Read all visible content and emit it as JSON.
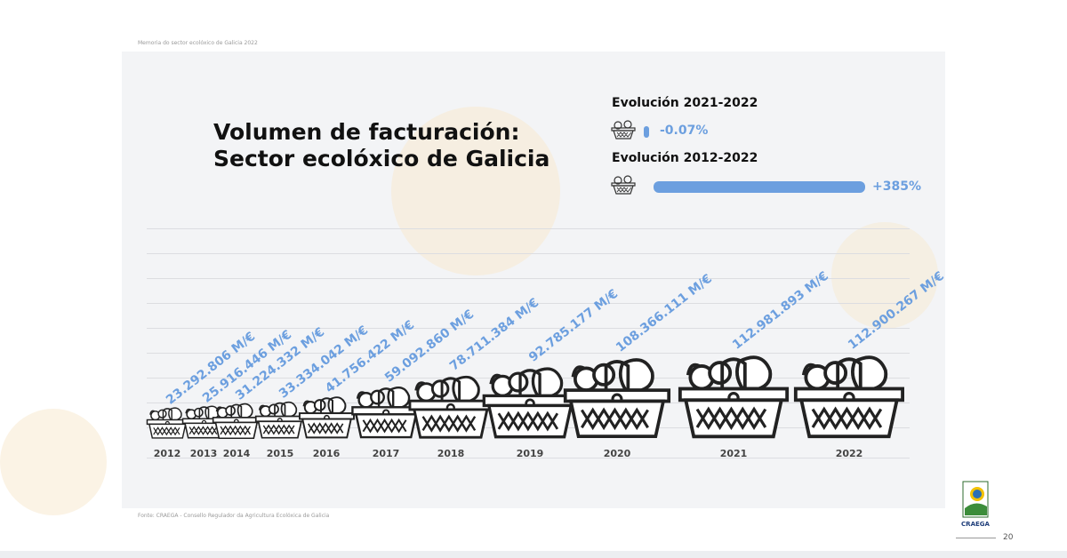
{
  "header": {
    "note": "Memoria do sector ecolóxico de Galicia 2022"
  },
  "title": {
    "line1": "Volumen de facturación:",
    "line2": "Sector ecolóxico de Galicia"
  },
  "evolution": [
    {
      "label": "Evolución 2021-2022",
      "value_text": "-0.07%",
      "value": -0.07
    },
    {
      "label": "Evolución 2012-2022",
      "value_text": "+385%",
      "value": 385
    }
  ],
  "chart_data": {
    "type": "bar",
    "title": "",
    "xlabel": "",
    "ylabel": "",
    "categories": [
      "2012",
      "2013",
      "2014",
      "2015",
      "2016",
      "2017",
      "2018",
      "2019",
      "2020",
      "2021",
      "2022"
    ],
    "values": [
      23292806,
      25916446,
      31224332,
      33334042,
      41756422,
      59092860,
      78711384,
      92785177,
      108366111,
      112981893,
      112900267
    ],
    "value_labels": [
      "23.292.806 M/€",
      "25.916.446 M/€",
      "31.224.332 M/€",
      "33.334.042 M/€",
      "41.756.422 M/€",
      "59.092.860 M/€",
      "78.711.384 M/€",
      "92.785.177 M/€",
      "108.366.111 M/€",
      "112.981.893 M/€",
      "112.900.267 M/€"
    ],
    "grid": true,
    "colors": {
      "label": "#6c9fdf",
      "bar": "#6c9fdf"
    }
  },
  "footer": {
    "source": "Fonte: CRAEGA - Consello Regulador da Agricultura Ecolóxica de Galicia",
    "page": "20",
    "logo_text": "CRAEGA"
  }
}
